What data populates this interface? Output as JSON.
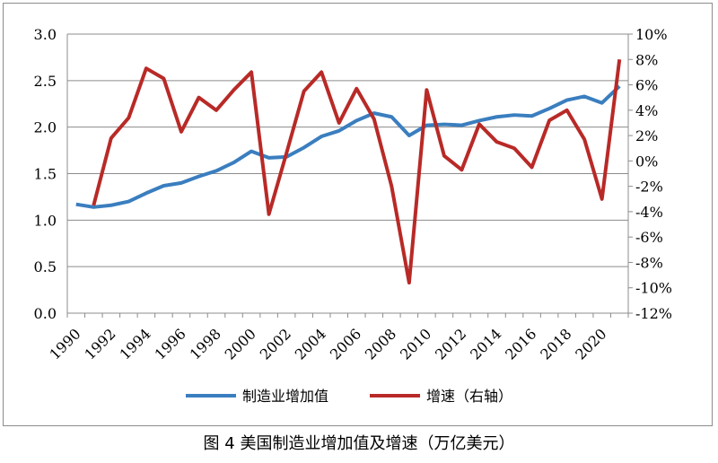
{
  "caption": "图 4  美国制造业增加值及增速（万亿美元）",
  "chart_data": {
    "type": "line",
    "title": "",
    "x": [
      1990,
      1991,
      1992,
      1993,
      1994,
      1995,
      1996,
      1997,
      1998,
      1999,
      2000,
      2001,
      2002,
      2003,
      2004,
      2005,
      2006,
      2007,
      2008,
      2009,
      2010,
      2011,
      2012,
      2013,
      2014,
      2015,
      2016,
      2017,
      2018,
      2019,
      2020,
      2021
    ],
    "x_tick_labels": [
      "1990",
      "1992",
      "1994",
      "1996",
      "1998",
      "2000",
      "2002",
      "2004",
      "2006",
      "2008",
      "2010",
      "2012",
      "2014",
      "2016",
      "2018",
      "2020"
    ],
    "y_left": {
      "ylim": [
        0,
        3.0
      ],
      "tick_labels": [
        "0.0",
        "0.5",
        "1.0",
        "1.5",
        "2.0",
        "2.5",
        "3.0"
      ]
    },
    "y_right": {
      "ylim": [
        -12,
        10
      ],
      "tick_labels": [
        "-12%",
        "-10%",
        "-8%",
        "-6%",
        "-4%",
        "-2%",
        "0%",
        "2%",
        "4%",
        "6%",
        "8%",
        "10%"
      ]
    },
    "grid": "horizontal",
    "legend_placement": "bottom",
    "series": [
      {
        "name": "制造业增加值",
        "axis": "left",
        "color": "#3a7ebf",
        "x": [
          1990,
          1991,
          1992,
          1993,
          1994,
          1995,
          1996,
          1997,
          1998,
          1999,
          2000,
          2001,
          2002,
          2003,
          2004,
          2005,
          2006,
          2007,
          2008,
          2009,
          2010,
          2011,
          2012,
          2013,
          2014,
          2015,
          2016,
          2017,
          2018,
          2019,
          2020,
          2021
        ],
        "values": [
          1.17,
          1.14,
          1.16,
          1.2,
          1.29,
          1.37,
          1.4,
          1.47,
          1.53,
          1.62,
          1.74,
          1.67,
          1.68,
          1.78,
          1.9,
          1.96,
          2.07,
          2.15,
          2.11,
          1.91,
          2.02,
          2.03,
          2.02,
          2.07,
          2.11,
          2.13,
          2.12,
          2.2,
          2.29,
          2.33,
          2.26,
          2.44
        ]
      },
      {
        "name": "增速（右轴）",
        "axis": "right",
        "color": "#b82a27",
        "x": [
          1991,
          1992,
          1993,
          1994,
          1995,
          1996,
          1997,
          1998,
          1999,
          2000,
          2001,
          2002,
          2003,
          2004,
          2005,
          2006,
          2007,
          2008,
          2009,
          2010,
          2011,
          2012,
          2013,
          2014,
          2015,
          2016,
          2017,
          2018,
          2019,
          2020,
          2021
        ],
        "values": [
          -3.5,
          1.8,
          3.4,
          7.3,
          6.5,
          2.3,
          5.0,
          4.0,
          5.6,
          7.0,
          -4.2,
          0.6,
          5.5,
          7.0,
          3.0,
          5.7,
          3.3,
          -2.0,
          -9.6,
          5.6,
          0.4,
          -0.7,
          2.9,
          1.5,
          1.0,
          -0.5,
          3.2,
          4.0,
          1.7,
          -3.0,
          8.0
        ]
      }
    ]
  }
}
